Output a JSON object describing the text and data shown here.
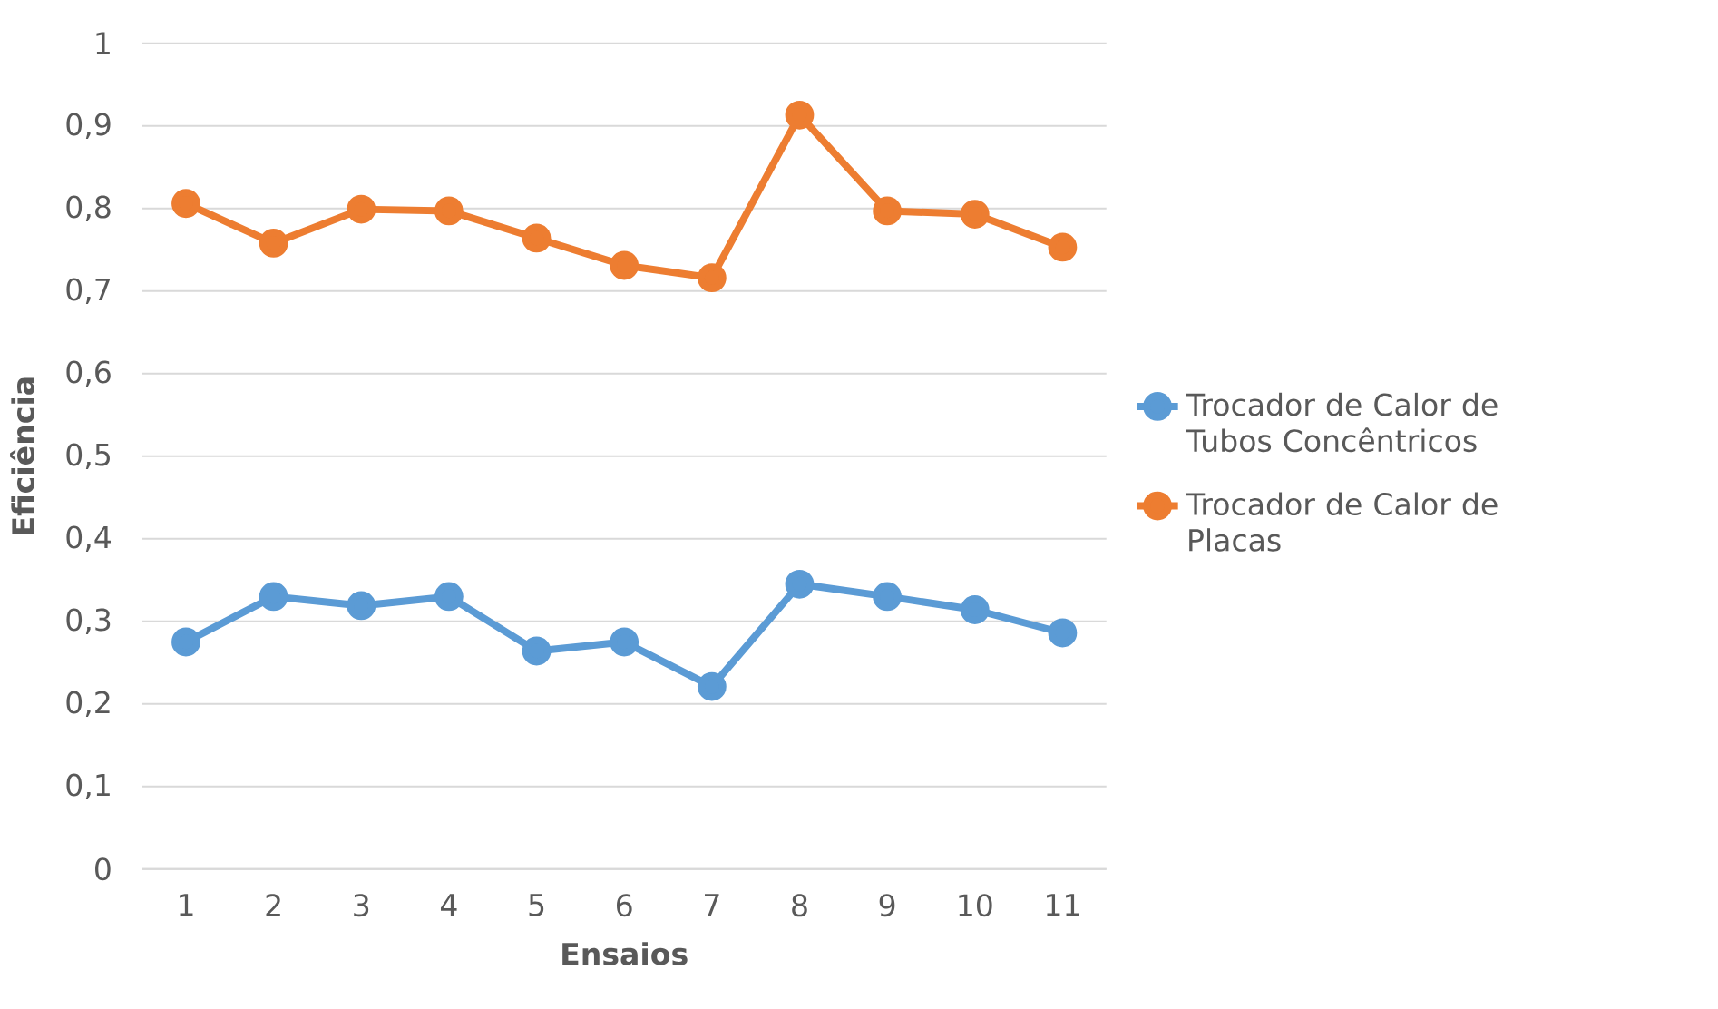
{
  "chart_data": {
    "type": "line",
    "xlabel": "Ensaios",
    "ylabel": "Eficiência",
    "categories": [
      "1",
      "2",
      "3",
      "4",
      "5",
      "6",
      "7",
      "8",
      "9",
      "10",
      "11"
    ],
    "series": [
      {
        "name": "Trocador de Calor de Tubos Concêntricos",
        "color": "#5b9bd5",
        "values": [
          0.275,
          0.33,
          0.319,
          0.33,
          0.264,
          0.275,
          0.221,
          0.345,
          0.33,
          0.314,
          0.286
        ]
      },
      {
        "name": "Trocador de Calor de Placas",
        "color": "#ed7d31",
        "values": [
          0.806,
          0.758,
          0.799,
          0.797,
          0.764,
          0.731,
          0.716,
          0.913,
          0.797,
          0.793,
          0.753
        ]
      }
    ],
    "ylim": [
      0,
      1
    ],
    "yticks": [
      0,
      {
        "value": 0.1,
        "label": "0,1"
      },
      {
        "value": 0.2,
        "label": "0,2"
      },
      {
        "value": 0.3,
        "label": "0,3"
      },
      {
        "value": 0.4,
        "label": "0,4"
      },
      {
        "value": 0.5,
        "label": "0,5"
      },
      {
        "value": 0.6,
        "label": "0,6"
      },
      {
        "value": 0.7,
        "label": "0,7"
      },
      {
        "value": 0.8,
        "label": "0,8"
      },
      {
        "value": 0.9,
        "label": "0,9"
      },
      1
    ],
    "grid": "y",
    "legend": "right",
    "marker": "circle",
    "line_style": "solid"
  }
}
